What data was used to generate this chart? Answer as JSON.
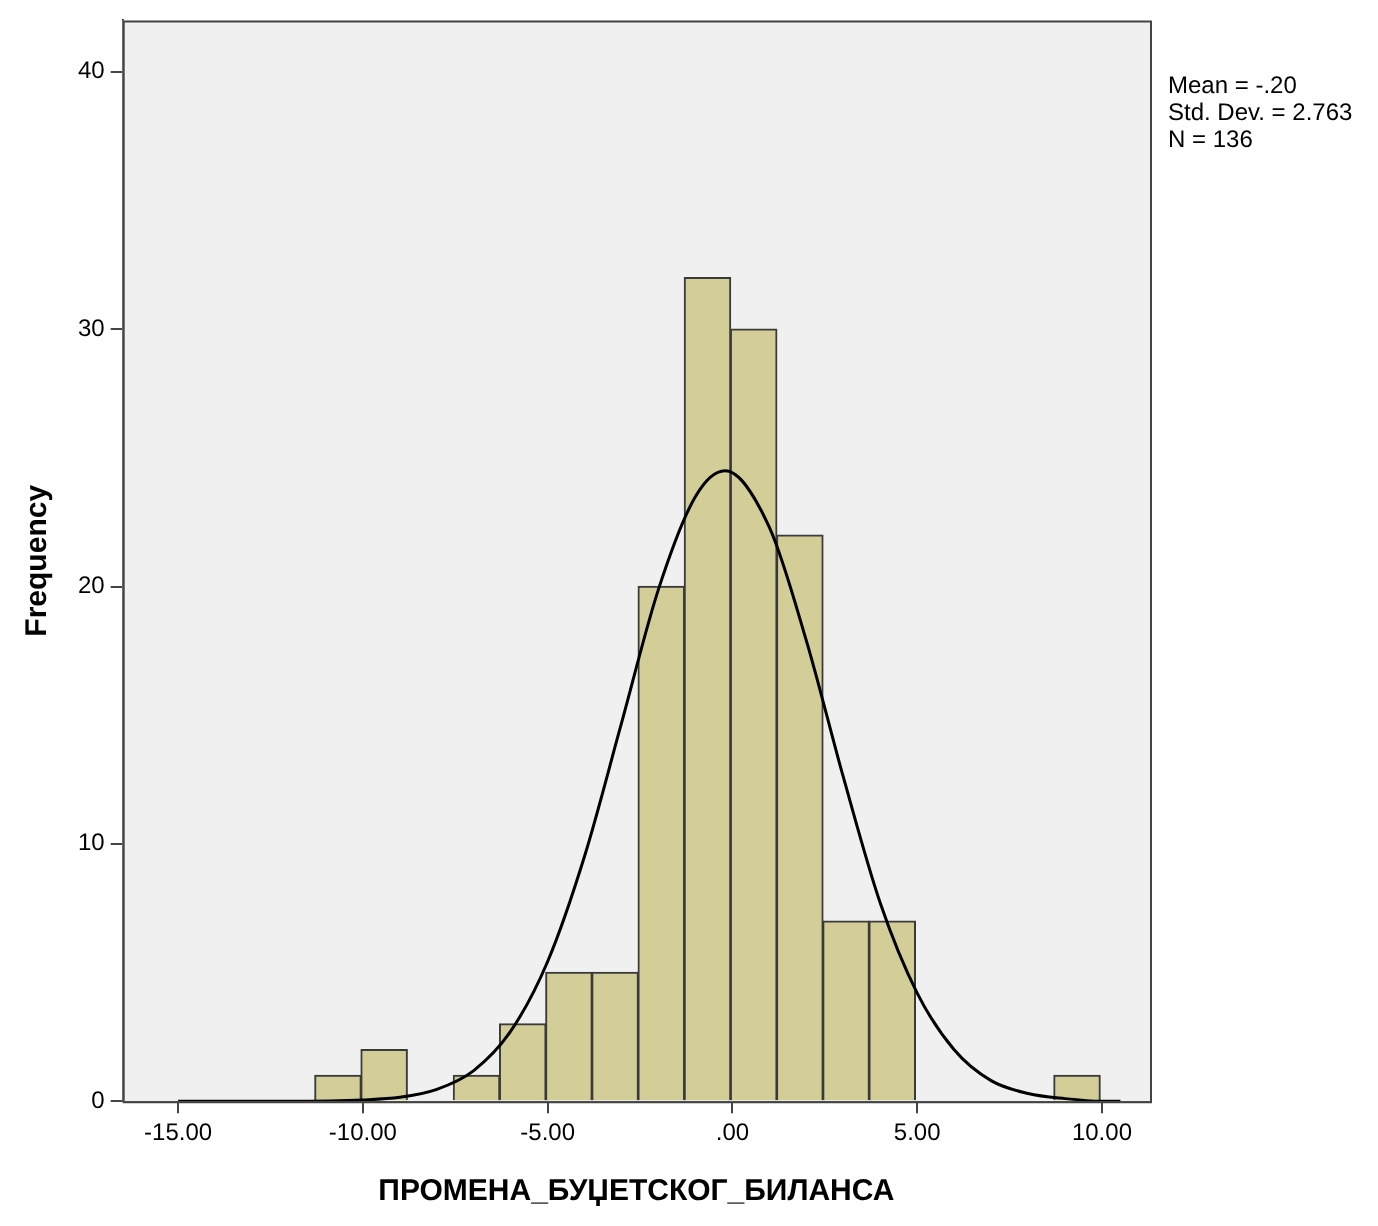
{
  "chart_data": {
    "type": "histogram",
    "xlabel": "ПРОМЕНА_БУЏЕТСКОГ_БИЛАНСА",
    "ylabel": "Frequency",
    "bins": [
      -11.3,
      -10.05,
      -8.8,
      -7.55,
      -6.3,
      -5.05,
      -3.8,
      -2.55,
      -1.3,
      -0.05,
      1.2,
      2.45,
      3.7,
      4.95,
      6.2,
      7.45,
      8.7,
      9.95
    ],
    "values": [
      1,
      2,
      0,
      1,
      3,
      5,
      5,
      20,
      32,
      30,
      22,
      7,
      7,
      0,
      0,
      0,
      1
    ],
    "color": "#d3ce97",
    "series": [
      {
        "type": "line",
        "color": "#000000",
        "x": [
          -15,
          -12,
          -10,
          -9,
          -8,
          -7,
          -6,
          -5,
          -4,
          -3,
          -2,
          -1,
          -0.2,
          1,
          2,
          3,
          4,
          5,
          6,
          7,
          8,
          9,
          10,
          10.5
        ],
        "values": [
          0,
          0,
          0.05,
          0.15,
          0.46,
          1.19,
          2.72,
          5.43,
          9.53,
          14.7,
          19.9,
          23.5,
          24.5,
          22.3,
          17.9,
          12.6,
          7.7,
          4.2,
          2.0,
          0.8,
          0.3,
          0.1,
          0,
          0
        ]
      }
    ],
    "xlim": [
      -16.5,
      11.3
    ],
    "xticks": [
      {
        "value": -15,
        "label": "-15.00"
      },
      {
        "value": -10,
        "label": "-10.00"
      },
      {
        "value": -5,
        "label": "-5.00"
      },
      {
        "value": 0,
        "label": ".00"
      },
      {
        "value": 5,
        "label": "5.00"
      },
      {
        "value": 10,
        "label": "10.00"
      }
    ],
    "ylim": [
      0,
      42
    ],
    "yticks": [
      0,
      10,
      20,
      30,
      40
    ],
    "grid": false,
    "legend": false,
    "marker": "none",
    "annotations": [
      "Mean = -.20",
      "Std. Dev. = 2.763",
      "N = 136"
    ]
  }
}
